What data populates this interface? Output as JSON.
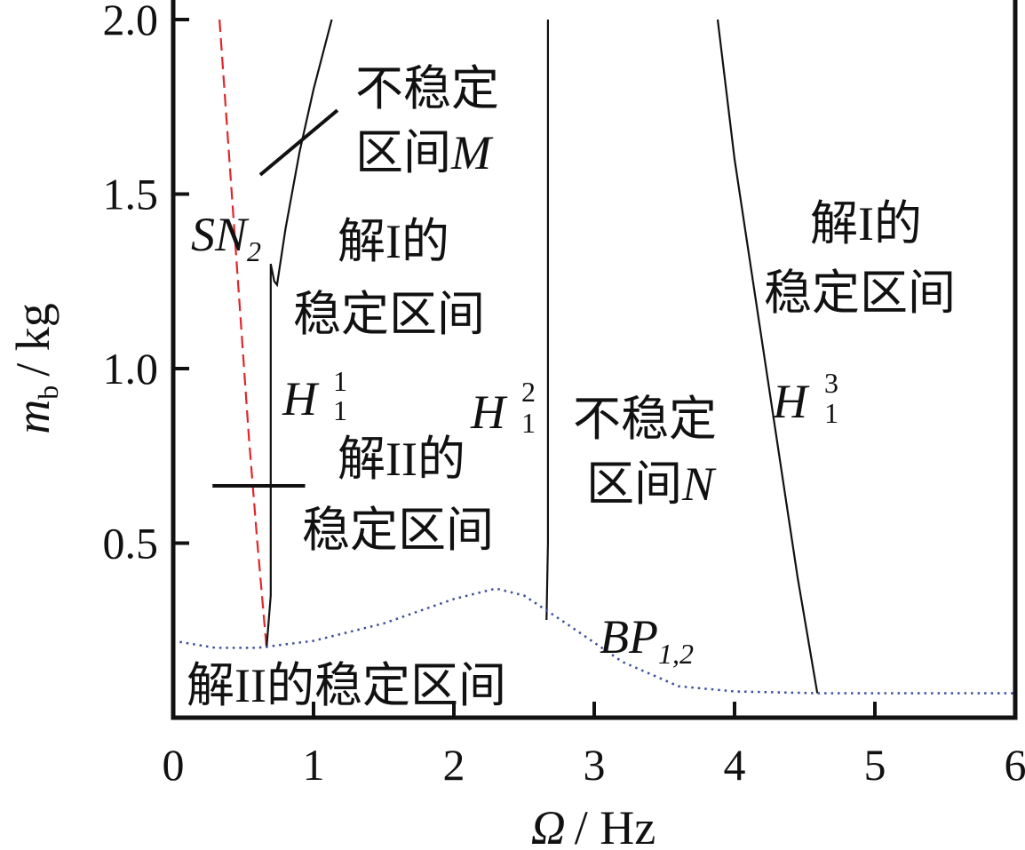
{
  "chart_data": {
    "type": "line",
    "title": "",
    "xlabel": "Ω / Hz",
    "xlabel_symbol": "Ω",
    "xlabel_unit": "/ Hz",
    "ylabel_symbol": "m",
    "ylabel_sub": "b",
    "ylabel_unit": "/ kg",
    "xlim": [
      0,
      6
    ],
    "ylim": [
      0,
      2.0
    ],
    "xticks": [
      "0",
      "1",
      "2",
      "3",
      "4",
      "5",
      "6"
    ],
    "yticks": [
      "0.5",
      "1.0",
      "1.5",
      "2.0"
    ],
    "grid": false,
    "series": [
      {
        "name": "SN2",
        "style": "dashed",
        "color": "#e0262b",
        "points": [
          [
            0.33,
            2.0
          ],
          [
            0.4,
            1.6
          ],
          [
            0.47,
            1.2
          ],
          [
            0.54,
            0.8
          ],
          [
            0.6,
            0.5
          ],
          [
            0.665,
            0.2
          ]
        ]
      },
      {
        "name": "H1^1",
        "style": "solid",
        "color": "#111111",
        "points": [
          [
            0.665,
            0.2
          ],
          [
            0.695,
            0.35
          ],
          [
            0.695,
            1.3
          ],
          [
            0.72,
            1.25
          ],
          [
            0.74,
            1.24
          ],
          [
            0.8,
            1.4
          ],
          [
            0.9,
            1.62
          ],
          [
            1.0,
            1.8
          ],
          [
            1.13,
            2.0
          ]
        ]
      },
      {
        "name": "H1^2",
        "style": "solid",
        "color": "#111111",
        "points": [
          [
            2.66,
            0.28
          ],
          [
            2.67,
            0.5
          ],
          [
            2.67,
            2.0
          ]
        ]
      },
      {
        "name": "H1^3",
        "style": "solid",
        "color": "#111111",
        "points": [
          [
            3.88,
            2.0
          ],
          [
            4.0,
            1.6
          ],
          [
            4.15,
            1.2
          ],
          [
            4.3,
            0.8
          ],
          [
            4.45,
            0.4
          ],
          [
            4.59,
            0.07
          ]
        ]
      },
      {
        "name": "BP1,2",
        "style": "dotted",
        "color": "#3a4f9a",
        "points": [
          [
            0,
            0.22
          ],
          [
            0.3,
            0.2
          ],
          [
            0.6,
            0.2
          ],
          [
            1.0,
            0.22
          ],
          [
            1.5,
            0.27
          ],
          [
            2.0,
            0.34
          ],
          [
            2.3,
            0.37
          ],
          [
            2.5,
            0.35
          ],
          [
            2.8,
            0.27
          ],
          [
            3.2,
            0.16
          ],
          [
            3.6,
            0.09
          ],
          [
            4.0,
            0.075
          ],
          [
            4.6,
            0.07
          ],
          [
            6,
            0.07
          ]
        ]
      }
    ],
    "leader_lines": [
      {
        "points": [
          [
            0.62,
            1.555
          ],
          [
            1.17,
            1.74
          ]
        ]
      },
      {
        "points": [
          [
            0.28,
            0.664
          ],
          [
            0.94,
            0.664
          ]
        ]
      }
    ],
    "annotations": {
      "unstable_M": [
        "不稳定",
        "区间"
      ],
      "unstable_M_letter": "M",
      "sn2": "SN",
      "sn2_sub": "2",
      "stable_I_left": [
        "解I的",
        "稳定区间"
      ],
      "h11": "H",
      "h11_sup": "1",
      "h11_sub": "1",
      "h12": "H",
      "h12_sup": "2",
      "h12_sub": "1",
      "h13": "H",
      "h13_sup": "3",
      "h13_sub": "1",
      "stable_II_mid": [
        "解II的",
        "稳定区间"
      ],
      "unstable_N": [
        "不稳定",
        "区间"
      ],
      "unstable_N_letter": "N",
      "stable_I_right": [
        "解I的",
        "稳定区间"
      ],
      "bp": "BP",
      "bp_sub": "1,2",
      "stable_II_bottom": "解II的稳定区间"
    }
  }
}
